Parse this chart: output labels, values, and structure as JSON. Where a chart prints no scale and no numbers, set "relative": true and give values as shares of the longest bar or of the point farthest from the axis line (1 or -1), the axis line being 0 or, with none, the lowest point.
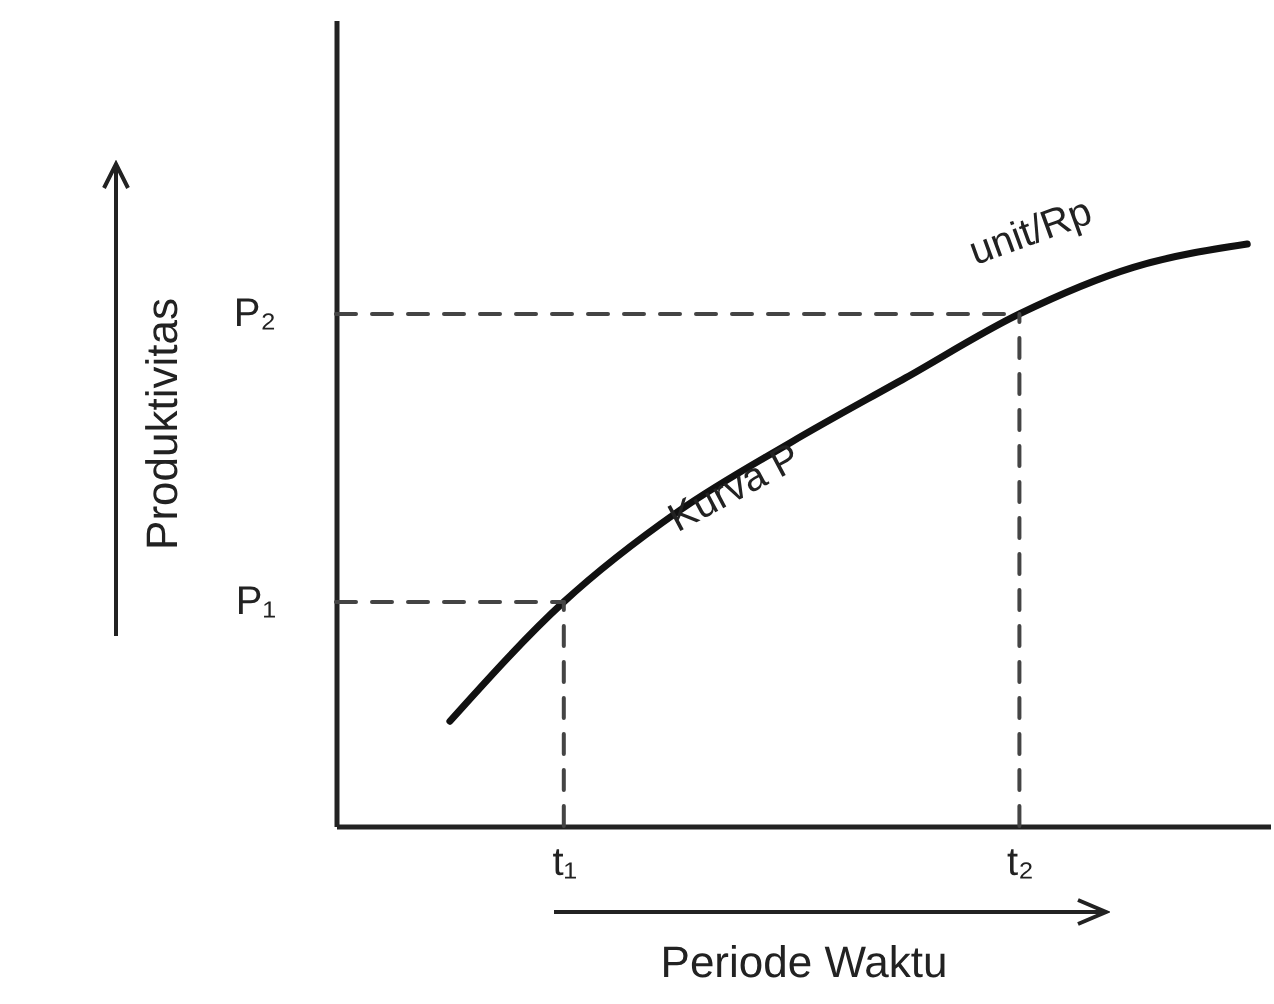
{
  "chart_data": {
    "type": "line",
    "xlabel": "Periode Waktu",
    "ylabel": "Produktivitas",
    "relative": true,
    "categories": [
      null,
      null,
      "t₁",
      null,
      null,
      null,
      "t₂",
      null,
      null
    ],
    "line_style": "solid",
    "series": [
      {
        "color": "#111111",
        "values": [
          null,
          0.18,
          0.385,
          0.54,
          0.66,
          0.77,
          0.88,
          0.96,
          1
        ]
      },
      {
        "color": "#444444",
        "line_style": "dashed",
        "values": [
          0.385,
          0.385,
          0.385,
          null,
          null,
          null,
          null,
          null,
          null
        ]
      },
      {
        "color": "#444444",
        "line_style": "dashed",
        "x": [
          "t₁",
          "t₁"
        ],
        "values": [
          0,
          0.385
        ]
      },
      {
        "color": "#444444",
        "line_style": "dashed",
        "values": [
          0.88,
          0.88,
          0.88,
          0.88,
          0.88,
          0.88,
          0.88,
          null,
          null
        ]
      },
      {
        "color": "#444444",
        "line_style": "dashed",
        "x": [
          "t₂",
          "t₂"
        ],
        "values": [
          0,
          0.88
        ]
      }
    ],
    "annotations": [
      "P₁",
      "P₂",
      "Kurva P",
      "unit/Rp"
    ]
  }
}
